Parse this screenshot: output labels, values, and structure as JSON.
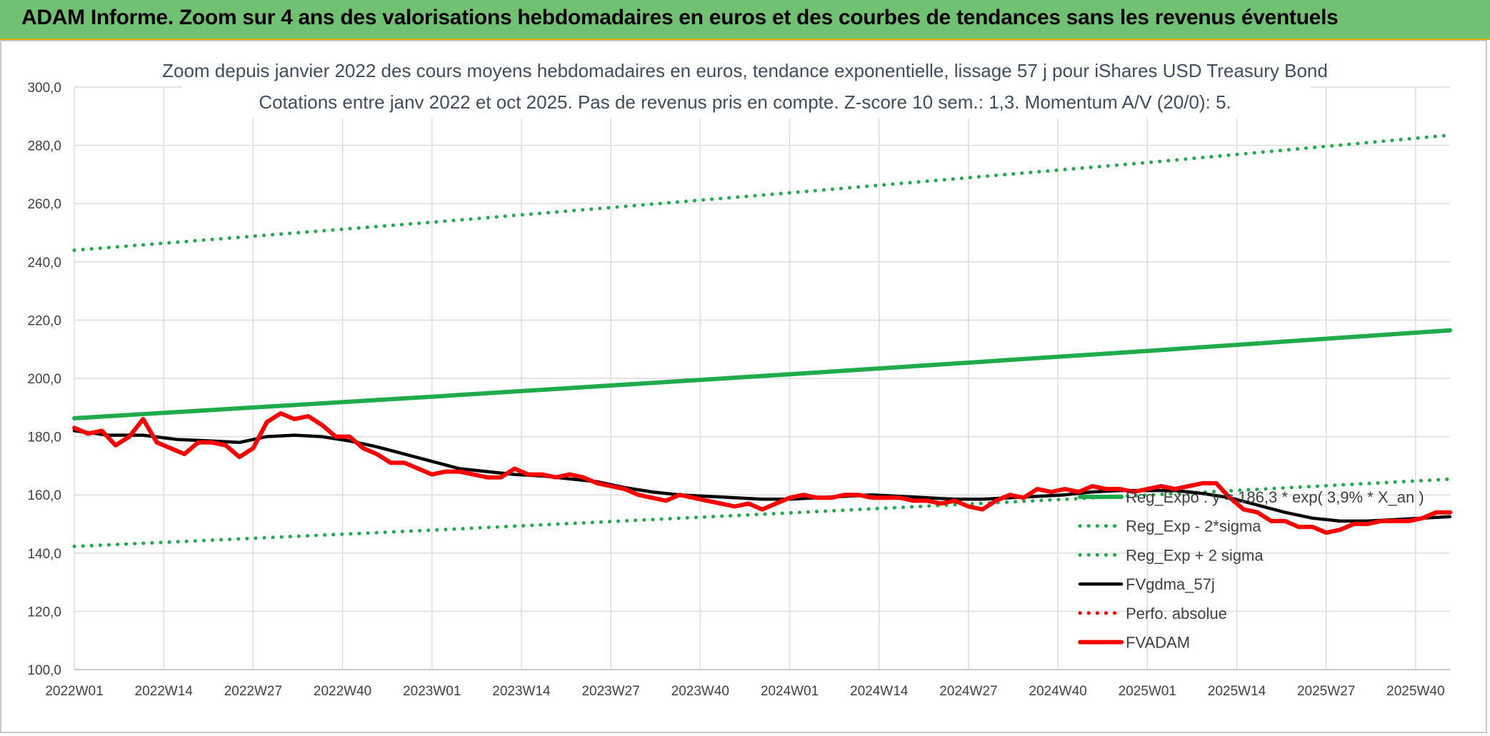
{
  "header": {
    "title": "ADAM Informe. Zoom sur 4 ans des valorisations hebdomadaires en euros et des courbes de tendances sans les revenus éventuels"
  },
  "chart_data": {
    "type": "line",
    "title": "Zoom depuis janvier 2022 des cours moyens hebdomadaires en euros, tendance exponentielle, lissage 57 j pour iShares USD Treasury Bond",
    "subtitle": "Cotations entre janv 2022 et oct 2025. Pas de revenus pris en compte. Z-score 10 sem.: 1,3. Momentum A/V (20/0): 5.",
    "xlabel": "",
    "ylabel": "",
    "ylim": [
      100,
      300
    ],
    "y_ticks": [
      "100,0",
      "120,0",
      "140,0",
      "160,0",
      "180,0",
      "200,0",
      "220,0",
      "240,0",
      "260,0",
      "280,0",
      "300,0"
    ],
    "x_ticks": [
      "2022W01",
      "2022W14",
      "2022W27",
      "2022W40",
      "2023W01",
      "2023W14",
      "2023W27",
      "2023W40",
      "2024W01",
      "2024W14",
      "2024W27",
      "2024W40",
      "2025W01",
      "2025W14",
      "2025W27",
      "2025W40"
    ],
    "x_range_weeks": [
      0,
      200
    ],
    "grid": true,
    "legend_position": "bottom-right",
    "series": [
      {
        "name": "Reg_Expo : y = 186,3 * exp( 3,9% * X_an )",
        "legend_label": "Reg_Expo : y = 186,3 * exp( 3,9% * X_an )",
        "style": "solid-thick",
        "color": "#1faa4b",
        "x": [
          0,
          52,
          104,
          156,
          200
        ],
        "y": [
          186.3,
          193.7,
          201.4,
          209.4,
          216.5
        ]
      },
      {
        "name": "Reg_Exp - 2*sigma",
        "legend_label": "Reg_Exp - 2*sigma",
        "style": "dotted",
        "color": "#1faa4b",
        "x": [
          0,
          52,
          104,
          156,
          200
        ],
        "y": [
          142.3,
          147.9,
          153.8,
          159.9,
          165.4
        ]
      },
      {
        "name": "Reg_Exp + 2 sigma",
        "legend_label": "Reg_Exp + 2 sigma",
        "style": "dotted",
        "color": "#1faa4b",
        "x": [
          0,
          52,
          104,
          156,
          200
        ],
        "y": [
          244.0,
          253.6,
          263.7,
          274.1,
          283.5
        ]
      },
      {
        "name": "FVgdma_57j",
        "legend_label": "FVgdma_57j",
        "style": "solid",
        "color": "#000000",
        "x": [
          0,
          5,
          10,
          15,
          20,
          24,
          28,
          32,
          36,
          40,
          44,
          48,
          52,
          56,
          60,
          64,
          68,
          72,
          76,
          80,
          84,
          88,
          92,
          96,
          100,
          104,
          108,
          112,
          116,
          120,
          124,
          128,
          132,
          136,
          140,
          144,
          148,
          152,
          156,
          160,
          164,
          168,
          172,
          176,
          180,
          184,
          188,
          192,
          196,
          200
        ],
        "y": [
          182.0,
          180.5,
          180.5,
          179.0,
          178.5,
          178.0,
          180.0,
          180.5,
          180.0,
          178.5,
          176.5,
          174.0,
          171.5,
          169.0,
          168.0,
          167.0,
          166.5,
          165.5,
          164.5,
          162.5,
          161.0,
          160.0,
          159.5,
          159.0,
          158.5,
          158.5,
          159.0,
          159.5,
          160.0,
          159.5,
          159.0,
          158.5,
          158.5,
          159.0,
          159.5,
          160.0,
          161.0,
          161.5,
          161.5,
          161.5,
          160.5,
          159.0,
          156.5,
          154.0,
          152.0,
          151.0,
          151.0,
          151.5,
          152.0,
          152.5
        ]
      },
      {
        "name": "Perfo. absolue",
        "legend_label": "Perfo. absolue",
        "style": "dotted",
        "color": "#ff0000",
        "x": [],
        "y": []
      },
      {
        "name": "FVADAM",
        "legend_label": "FVADAM",
        "style": "solid-thick",
        "color": "#ff0000",
        "x": [
          0,
          2,
          4,
          6,
          8,
          10,
          12,
          14,
          16,
          18,
          20,
          22,
          24,
          26,
          28,
          30,
          32,
          34,
          36,
          38,
          40,
          42,
          44,
          46,
          48,
          50,
          52,
          54,
          56,
          58,
          60,
          62,
          64,
          66,
          68,
          70,
          72,
          74,
          76,
          78,
          80,
          82,
          84,
          86,
          88,
          90,
          92,
          94,
          96,
          98,
          100,
          102,
          104,
          106,
          108,
          110,
          112,
          114,
          116,
          118,
          120,
          122,
          124,
          126,
          128,
          130,
          132,
          134,
          136,
          138,
          140,
          142,
          144,
          146,
          148,
          150,
          152,
          154,
          156,
          158,
          160,
          162,
          164,
          166,
          168,
          170,
          172,
          174,
          176,
          178,
          180,
          182,
          184,
          186,
          188,
          190,
          192,
          194,
          196,
          198,
          200
        ],
        "y": [
          183,
          181,
          182,
          177,
          180,
          186,
          178,
          176,
          174,
          178,
          178,
          177,
          173,
          176,
          185,
          188,
          186,
          187,
          184,
          180,
          180,
          176,
          174,
          171,
          171,
          169,
          167,
          168,
          168,
          167,
          166,
          166,
          169,
          167,
          167,
          166,
          167,
          166,
          164,
          163,
          162,
          160,
          159,
          158,
          160,
          159,
          158,
          157,
          156,
          157,
          155,
          157,
          159,
          160,
          159,
          159,
          160,
          160,
          159,
          159,
          159,
          158,
          158,
          157,
          158,
          156,
          155,
          158,
          160,
          159,
          162,
          161,
          162,
          161,
          163,
          162,
          162,
          161,
          162,
          163,
          162,
          163,
          164,
          164,
          159,
          155,
          154,
          151,
          151,
          149,
          149,
          147,
          148,
          150,
          150,
          151,
          151,
          151,
          152,
          154,
          154
        ]
      }
    ]
  }
}
